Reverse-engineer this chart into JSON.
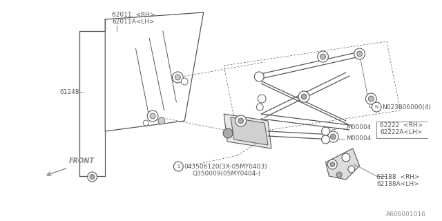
{
  "bg_color": "#ffffff",
  "line_color": "#555555",
  "text_color": "#555555",
  "diagram_id": "A606001016",
  "label_62011_line1": "62011  <RH>",
  "label_62011_line2": "62011A<LH>",
  "label_61248": "61248",
  "label_N": "N023806000(4)",
  "label_M1": "M00004",
  "label_M2": "M00004",
  "label_62222_line1": "62222  <RH>",
  "label_62222_line2": "62222A<LH>",
  "label_62188_line1": "62188  <RH>",
  "label_62188_line2": "62188A<LH>",
  "label_S_line1": "043506120(3X-05MY0403)",
  "label_S_line2": "Q350009(05MY0404-)",
  "label_front": "FRONT",
  "footnote": "A606001016"
}
